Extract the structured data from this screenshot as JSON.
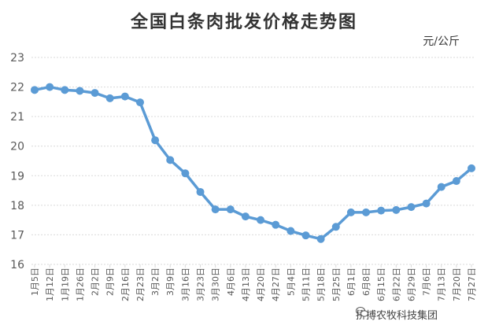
{
  "chart_data": {
    "type": "line",
    "title": "全国白条肉批发价格走势图",
    "unit_label": "元/公斤",
    "ylim": [
      16,
      23
    ],
    "yticks": [
      16,
      17,
      18,
      19,
      20,
      21,
      22,
      23
    ],
    "grid": "horizontal-dashed",
    "legend": "none",
    "line_color": "#5b9bd5",
    "categories": [
      "1月5日",
      "1月12日",
      "1月19日",
      "1月26日",
      "2月2日",
      "2月9日",
      "2月16日",
      "2月23日",
      "3月2日",
      "3月9日",
      "3月16日",
      "3月23日",
      "3月30日",
      "4月6日",
      "4月13日",
      "4月20日",
      "4月27日",
      "5月4日",
      "5月11日",
      "5月18日",
      "5月25日",
      "6月1日",
      "6月8日",
      "6月15日",
      "6月22日",
      "6月29日",
      "7月6日",
      "7月13日",
      "7月20日",
      "7月27日"
    ],
    "values": [
      21.9,
      22.0,
      21.9,
      21.87,
      21.8,
      21.62,
      21.68,
      21.48,
      20.2,
      19.53,
      19.08,
      18.45,
      17.86,
      17.86,
      17.62,
      17.5,
      17.34,
      17.13,
      16.98,
      16.86,
      17.27,
      17.76,
      17.76,
      17.82,
      17.84,
      17.94,
      18.06,
      18.62,
      18.82,
      19.25
    ]
  },
  "watermark": {
    "text": "拼搏农牧科技集团",
    "icon": "wechat-icon"
  }
}
